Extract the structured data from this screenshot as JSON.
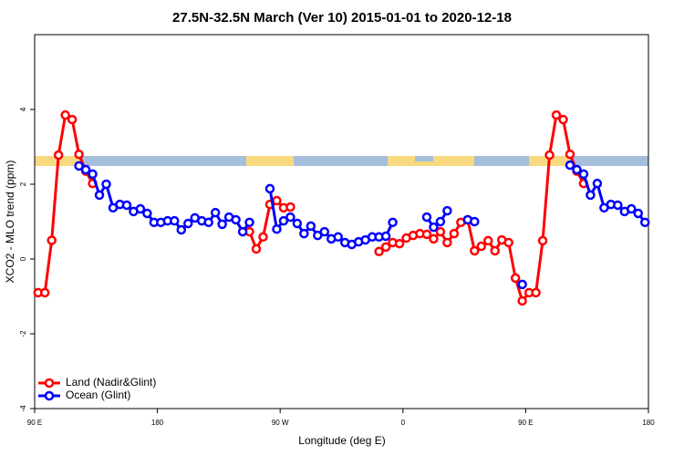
{
  "chart_data": {
    "type": "line",
    "title": "27.5N-32.5N March (Ver 10)   2015-01-01 to 2020-12-18",
    "x_label": "Longitude (deg E)",
    "y_label": "XCO2 - MLO trend (ppm)",
    "xlim": [
      90,
      540
    ],
    "ylim": [
      -4,
      6
    ],
    "xticks": [
      {
        "value": 90,
        "label": "90 E"
      },
      180,
      {
        "value": 270,
        "label": "90 W"
      },
      {
        "value": 360,
        "label": "0"
      },
      {
        "value": 450,
        "label": "90 E"
      },
      {
        "value": 540,
        "label": "180"
      }
    ],
    "yticks": [
      -4,
      -2,
      0,
      2,
      4
    ],
    "legend": "bottom-left",
    "x": [
      92.5,
      97.5,
      102.5,
      107.5,
      112.5,
      117.5,
      122.5,
      127.5,
      132.5,
      137.5,
      142.5,
      147.5,
      152.5,
      157.5,
      162.5,
      167.5,
      172.5,
      177.5,
      182.5,
      187.5,
      192.5,
      197.5,
      202.5,
      207.5,
      212.5,
      217.5,
      222.5,
      227.5,
      232.5,
      237.5,
      242.5,
      247.5,
      252.5,
      257.5,
      262.5,
      267.5,
      272.5,
      277.5,
      282.5,
      287.5,
      292.5,
      297.5,
      302.5,
      307.5,
      312.5,
      317.5,
      322.5,
      327.5,
      332.5,
      337.5,
      342.5,
      347.5,
      352.5,
      357.5,
      362.5,
      367.5,
      372.5,
      377.5,
      382.5,
      387.5,
      392.5,
      397.5,
      402.5,
      407.5,
      412.5,
      417.5,
      422.5,
      427.5,
      432.5,
      437.5,
      442.5,
      447.5,
      452.5,
      457.5,
      462.5,
      467.5,
      472.5,
      477.5,
      482.5,
      487.5,
      492.5,
      497.5,
      502.5,
      507.5,
      512.5,
      517.5,
      522.5,
      527.5,
      532.5,
      537.5
    ],
    "series": [
      {
        "name": "Land (Nadir&Glint)",
        "color": "#ff0000",
        "values": [
          -0.9,
          -0.9,
          0.5,
          2.78,
          3.85,
          3.73,
          2.8,
          2.35,
          2.02,
          null,
          null,
          null,
          null,
          null,
          null,
          null,
          null,
          null,
          null,
          null,
          null,
          null,
          null,
          null,
          null,
          null,
          null,
          null,
          null,
          null,
          null,
          0.73,
          0.27,
          0.59,
          1.46,
          1.56,
          1.37,
          1.39,
          null,
          null,
          null,
          null,
          null,
          null,
          null,
          null,
          null,
          null,
          null,
          null,
          0.2,
          0.32,
          0.44,
          0.41,
          0.56,
          0.63,
          0.68,
          0.66,
          0.54,
          0.73,
          0.44,
          0.68,
          0.98,
          1.05,
          0.22,
          0.34,
          0.49,
          0.22,
          0.51,
          0.44,
          -0.51,
          -1.12,
          -0.9,
          -0.9,
          0.49,
          2.78,
          3.85,
          3.73,
          2.8,
          2.35,
          2.02,
          null,
          null,
          null,
          null,
          null,
          null,
          null,
          null,
          null
        ]
      },
      {
        "name": "Ocean (Glint)",
        "color": "#0000ff",
        "values": [
          null,
          null,
          null,
          null,
          null,
          null,
          2.49,
          2.39,
          2.27,
          1.71,
          2.0,
          1.37,
          1.46,
          1.44,
          1.27,
          1.34,
          1.22,
          0.98,
          0.98,
          1.02,
          1.02,
          0.78,
          0.95,
          1.1,
          1.02,
          0.98,
          1.24,
          0.93,
          1.12,
          1.05,
          0.73,
          0.98,
          null,
          null,
          1.88,
          0.8,
          1.02,
          1.12,
          0.95,
          0.68,
          0.88,
          0.63,
          0.73,
          0.54,
          0.59,
          0.44,
          0.39,
          0.46,
          0.51,
          0.59,
          0.59,
          0.61,
          0.98,
          null,
          null,
          null,
          null,
          1.12,
          0.85,
          1.0,
          1.29,
          null,
          null,
          1.05,
          1.0,
          null,
          null,
          null,
          null,
          null,
          null,
          -0.68,
          null,
          null,
          null,
          null,
          null,
          null,
          2.51,
          2.39,
          2.27,
          1.71,
          2.02,
          1.37,
          1.46,
          1.44,
          1.27,
          1.34,
          1.22,
          0.98
        ]
      }
    ]
  }
}
